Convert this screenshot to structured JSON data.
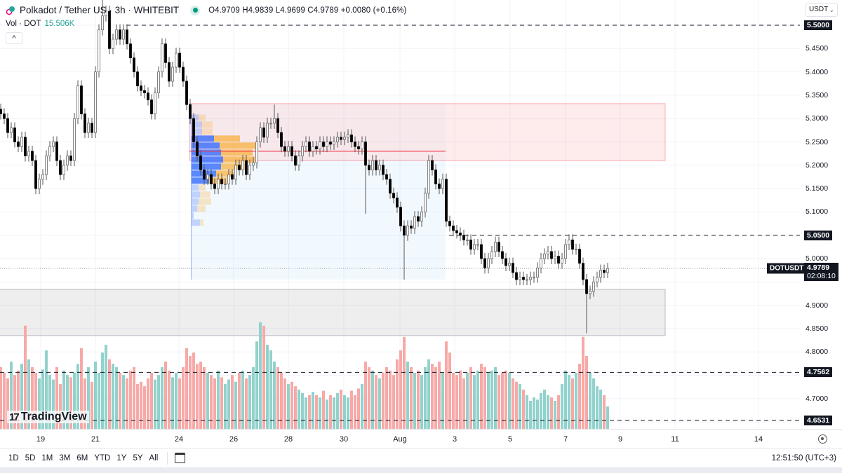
{
  "header": {
    "title": "Polkadot / Tether US · 3h · WHITEBIT",
    "ohlc": "O4.9709 H4.9839 L4.9699 C4.9789 +0.0080 (+0.16%)",
    "vol_label": "Vol · DOT",
    "vol_value": "15.506K",
    "collapse_label": "^"
  },
  "currency_select": "USDT",
  "colors": {
    "up_volume": "#92d2cc",
    "down_volume": "#f7a9a7",
    "resistance_zone": "#f23645",
    "support_zone": "#787b86",
    "profile_up": "#2962ff",
    "profile_down": "#f9a825",
    "accent": "#26a69a"
  },
  "price_axis": {
    "ticks": [
      "5.4500",
      "5.4000",
      "5.3500",
      "5.3000",
      "5.2500",
      "5.2000",
      "5.1500",
      "5.1000",
      "5.0000",
      "4.9000",
      "4.8500",
      "4.8000",
      "4.7000"
    ],
    "levels": [
      "5.5000",
      "5.0500",
      "4.7562",
      "4.6531"
    ],
    "symbol": "DOTUSDT",
    "last_price": "4.9789",
    "countdown": "02:08:10"
  },
  "time_axis": [
    "19",
    "21",
    "24",
    "26",
    "28",
    "30",
    "Aug",
    "3",
    "5",
    "7",
    "9",
    "11",
    "14"
  ],
  "toolbar": {
    "ranges": [
      "1D",
      "5D",
      "1M",
      "3M",
      "6M",
      "YTD",
      "1Y",
      "5Y",
      "All"
    ],
    "clock": "12:51:50 (UTC+3)"
  },
  "logo": "TradingView",
  "chart_data": {
    "type": "candlestick",
    "interval": "3h",
    "symbol": "DOTUSDT",
    "ylim": [
      4.63,
      5.56
    ],
    "first_close": 5.32,
    "closes": [
      5.31,
      5.3,
      5.27,
      5.28,
      5.25,
      5.24,
      5.26,
      5.22,
      5.23,
      5.21,
      5.15,
      5.17,
      5.18,
      5.22,
      5.24,
      5.25,
      5.21,
      5.18,
      5.2,
      5.22,
      5.21,
      5.3,
      5.37,
      5.31,
      5.27,
      5.29,
      5.27,
      5.4,
      5.49,
      5.52,
      5.53,
      5.45,
      5.47,
      5.49,
      5.47,
      5.49,
      5.46,
      5.43,
      5.4,
      5.37,
      5.36,
      5.355,
      5.34,
      5.31,
      5.355,
      5.4,
      5.46,
      5.42,
      5.38,
      5.41,
      5.44,
      5.41,
      5.38,
      5.33,
      5.3,
      5.25,
      5.22,
      5.19,
      5.17,
      5.18,
      5.16,
      5.15,
      5.17,
      5.16,
      5.16,
      5.18,
      5.17,
      5.2,
      5.19,
      5.21,
      5.18,
      5.2,
      5.205,
      5.25,
      5.28,
      5.26,
      5.29,
      5.29,
      5.3,
      5.27,
      5.24,
      5.23,
      5.24,
      5.22,
      5.2,
      5.22,
      5.24,
      5.25,
      5.23,
      5.24,
      5.235,
      5.25,
      5.24,
      5.25,
      5.245,
      5.25,
      5.26,
      5.255,
      5.26,
      5.265,
      5.25,
      5.24,
      5.235,
      5.25,
      5.2,
      5.19,
      5.21,
      5.19,
      5.2,
      5.18,
      5.17,
      5.14,
      5.13,
      5.11,
      5.07,
      5.05,
      5.07,
      5.065,
      5.09,
      5.08,
      5.1,
      5.14,
      5.21,
      5.19,
      5.16,
      5.15,
      5.17,
      5.08,
      5.07,
      5.06,
      5.055,
      5.05,
      5.04,
      5.04,
      5.02,
      5.03,
      5.03,
      5.0,
      4.98,
      5.0,
      5.015,
      5.035,
      5.015,
      5.0,
      4.985,
      4.99,
      4.97,
      4.955,
      4.96,
      4.955,
      4.955,
      4.96,
      4.96,
      4.98,
      5.0,
      5.01,
      5.015,
      5.0,
      5.005,
      4.99,
      5.0,
      5.03,
      5.04,
      5.02,
      5.02,
      4.99,
      4.955,
      4.925,
      4.93,
      4.95,
      4.96,
      4.975,
      4.97,
      4.9789
    ],
    "wick_extremes": [
      {
        "index": 104,
        "low": 5.096
      },
      {
        "index": 115,
        "low": 4.955
      },
      {
        "index": 167,
        "low": 4.84
      },
      {
        "index": 29,
        "high": 5.58
      },
      {
        "index": 78,
        "high": 5.33
      }
    ],
    "volumes": [
      55,
      50,
      45,
      60,
      48,
      52,
      58,
      92,
      62,
      55,
      50,
      45,
      53,
      70,
      48,
      44,
      55,
      40,
      52,
      48,
      46,
      50,
      58,
      72,
      45,
      55,
      42,
      60,
      50,
      68,
      75,
      62,
      58,
      55,
      50,
      48,
      45,
      52,
      55,
      40,
      42,
      38,
      45,
      50,
      44,
      48,
      55,
      60,
      52,
      46,
      50,
      45,
      55,
      72,
      65,
      68,
      58,
      60,
      55,
      50,
      48,
      45,
      52,
      46,
      40,
      44,
      48,
      42,
      50,
      52,
      45,
      48,
      55,
      78,
      95,
      92,
      75,
      70,
      60,
      55,
      50,
      45,
      40,
      42,
      38,
      35,
      32,
      28,
      30,
      33,
      30,
      28,
      34,
      26,
      30,
      28,
      32,
      35,
      30,
      28,
      34,
      30,
      36,
      40,
      60,
      55,
      52,
      48,
      45,
      50,
      55,
      52,
      48,
      62,
      70,
      82,
      60,
      55,
      50,
      52,
      48,
      55,
      62,
      58,
      55,
      60,
      50,
      78,
      68,
      50,
      48,
      52,
      45,
      50,
      55,
      48,
      52,
      58,
      55,
      50,
      52,
      55,
      48,
      50,
      52,
      50,
      45,
      42,
      40,
      35,
      30,
      25,
      28,
      26,
      32,
      35,
      30,
      28,
      25,
      30,
      40,
      52,
      48,
      45,
      50,
      58,
      82,
      65,
      50,
      45,
      38,
      35,
      30,
      20
    ],
    "horizontal_levels": [
      5.5,
      5.05,
      4.7562,
      4.6531
    ],
    "resistance_zone": [
      5.21,
      5.332
    ],
    "support_zone": [
      4.835,
      4.934
    ],
    "poc_price": 5.23,
    "volume_profile": [
      {
        "price": 5.302,
        "up": 10,
        "down": 10
      },
      {
        "price": 5.287,
        "up": 15,
        "down": 15
      },
      {
        "price": 5.272,
        "up": 15,
        "down": 15
      },
      {
        "price": 5.257,
        "up": 32,
        "down": 37
      },
      {
        "price": 5.242,
        "up": 40,
        "down": 55
      },
      {
        "price": 5.227,
        "up": 42,
        "down": 45
      },
      {
        "price": 5.212,
        "up": 45,
        "down": 45
      },
      {
        "price": 5.197,
        "up": 42,
        "down": 35
      },
      {
        "price": 5.182,
        "up": 35,
        "down": 25
      },
      {
        "price": 5.167,
        "up": 25,
        "down": 25
      },
      {
        "price": 5.152,
        "up": 10,
        "down": 10
      },
      {
        "price": 5.137,
        "up": 12,
        "down": 15
      },
      {
        "price": 5.122,
        "up": 10,
        "down": 18
      },
      {
        "price": 5.107,
        "up": 8,
        "down": 12
      },
      {
        "price": 5.092,
        "up": 3,
        "down": 0
      },
      {
        "price": 5.077,
        "up": 12,
        "down": 5
      }
    ],
    "grid": true
  }
}
